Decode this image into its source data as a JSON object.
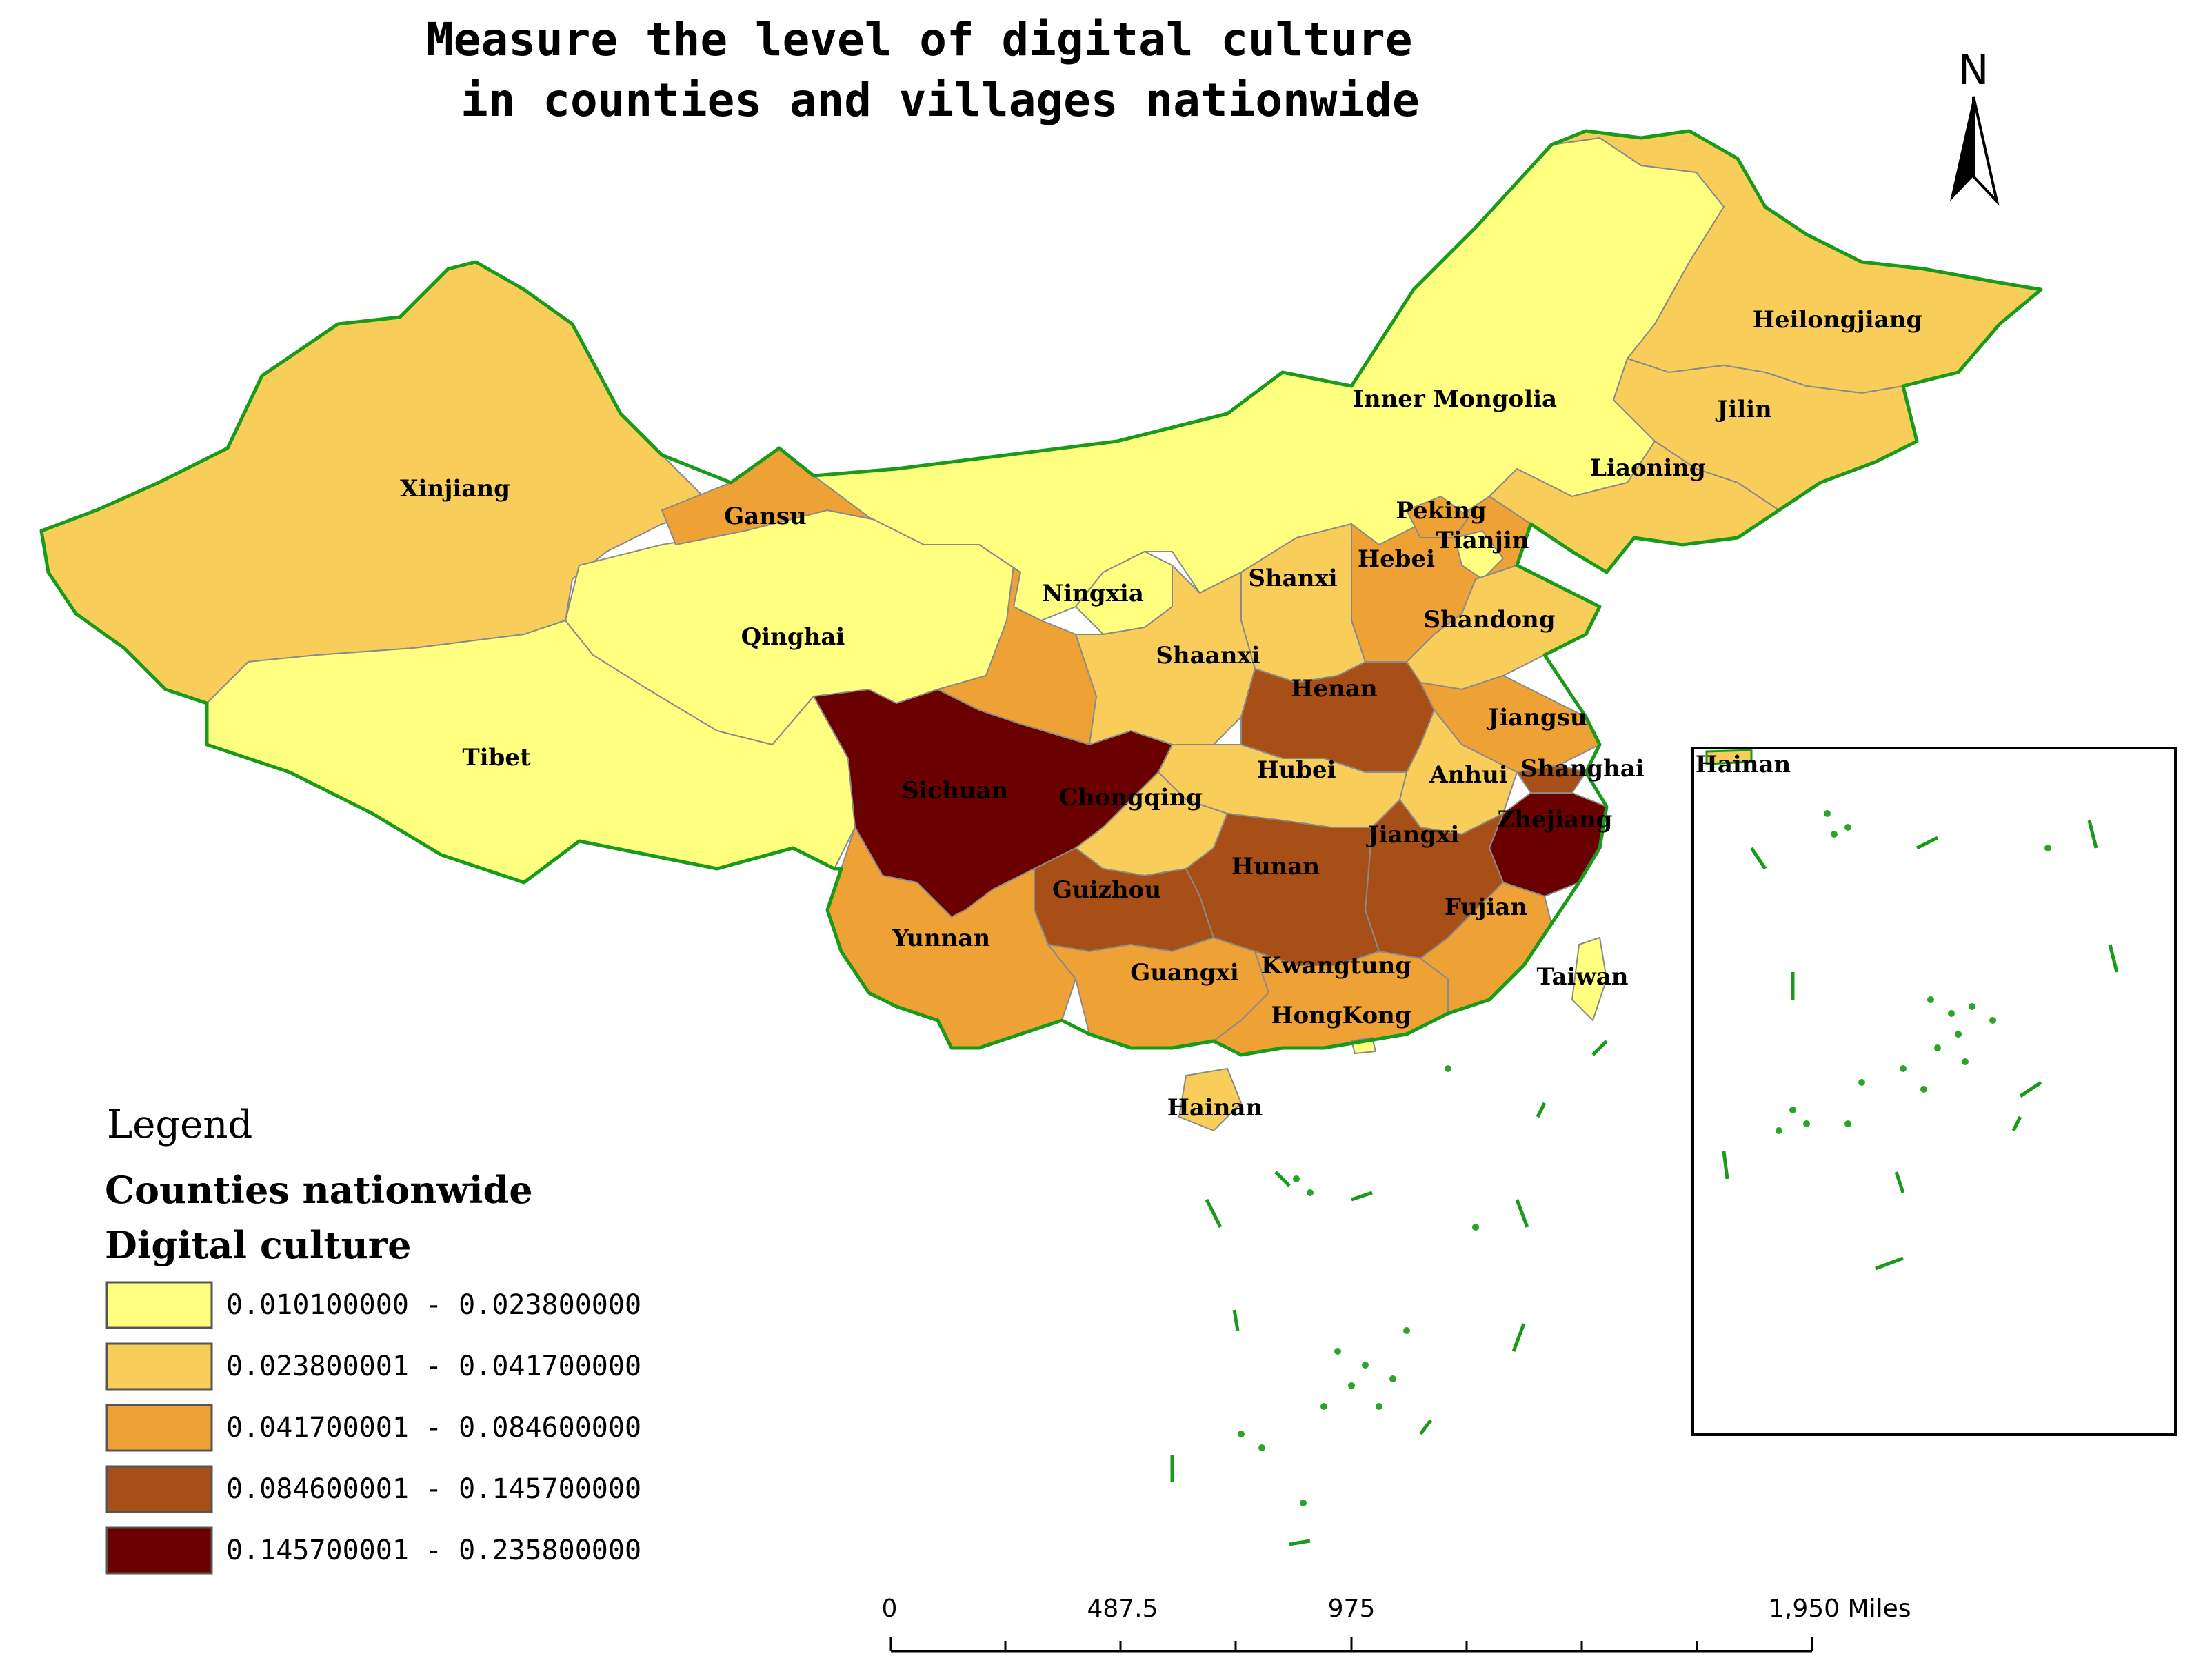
{
  "title": {
    "line1": "Measure the level of digital culture",
    "line2": "in counties and villages nationwide"
  },
  "north_arrow": {
    "label": "N"
  },
  "legend": {
    "heading": "Legend",
    "layer": "Counties nationwide",
    "field": "Digital culture",
    "classes": [
      {
        "range": "0.010100000 - 0.023800000",
        "color": "#ffff80"
      },
      {
        "range": "0.023800001 - 0.041700000",
        "color": "#f8cd5a"
      },
      {
        "range": "0.041700001 - 0.084600000",
        "color": "#eea236"
      },
      {
        "range": "0.084600001 - 0.145700000",
        "color": "#a74f16"
      },
      {
        "range": "0.145700001 - 0.235800000",
        "color": "#6b0000"
      }
    ]
  },
  "scale_bar": {
    "ticks": [
      "0",
      "487.5",
      "975",
      "1,950 Miles"
    ]
  },
  "inset": {
    "label": "Hainan"
  },
  "provinces": [
    {
      "name": "Xinjiang",
      "class": 1
    },
    {
      "name": "Tibet",
      "class": 0
    },
    {
      "name": "Qinghai",
      "class": 0
    },
    {
      "name": "Gansu",
      "class": 2
    },
    {
      "name": "Inner Mongolia",
      "class": 0
    },
    {
      "name": "Heilongjiang",
      "class": 1
    },
    {
      "name": "Jilin",
      "class": 1
    },
    {
      "name": "Liaoning",
      "class": 1
    },
    {
      "name": "Peking",
      "class": 2
    },
    {
      "name": "Tianjin",
      "class": 0
    },
    {
      "name": "Hebei",
      "class": 2
    },
    {
      "name": "Shanxi",
      "class": 1
    },
    {
      "name": "Ningxia",
      "class": 0
    },
    {
      "name": "Shaanxi",
      "class": 1
    },
    {
      "name": "Shandong",
      "class": 1
    },
    {
      "name": "Henan",
      "class": 3
    },
    {
      "name": "Jiangsu",
      "class": 2
    },
    {
      "name": "Shanghai",
      "class": 3
    },
    {
      "name": "Anhui",
      "class": 1
    },
    {
      "name": "Hubei",
      "class": 1
    },
    {
      "name": "Sichuan",
      "class": 4
    },
    {
      "name": "Chongqing",
      "class": 1
    },
    {
      "name": "Zhejiang",
      "class": 4
    },
    {
      "name": "Jiangxi",
      "class": 3
    },
    {
      "name": "Hunan",
      "class": 3
    },
    {
      "name": "Guizhou",
      "class": 3
    },
    {
      "name": "Yunnan",
      "class": 2
    },
    {
      "name": "Guangxi",
      "class": 2
    },
    {
      "name": "Kwangtung",
      "class": 2
    },
    {
      "name": "Fujian",
      "class": 2
    },
    {
      "name": "Taiwan",
      "class": 0
    },
    {
      "name": "HongKong",
      "class": 0
    },
    {
      "name": "Hainan",
      "class": 1
    }
  ]
}
